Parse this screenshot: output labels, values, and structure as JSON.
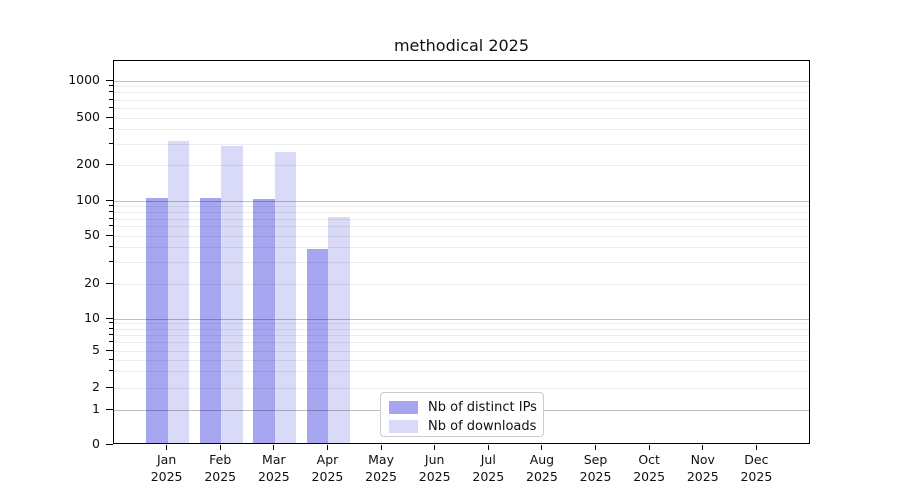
{
  "chart_data": {
    "type": "bar",
    "title": "methodical 2025",
    "categories": [
      "Jan",
      "Feb",
      "Mar",
      "Apr",
      "May",
      "Jun",
      "Jul",
      "Aug",
      "Sep",
      "Oct",
      "Nov",
      "Dec"
    ],
    "category_year": "2025",
    "series": [
      {
        "name": "Nb of distinct IPs",
        "color": "#a6a6f0",
        "values": [
          106,
          106,
          104,
          39,
          0,
          0,
          0,
          0,
          0,
          0,
          0,
          0
        ]
      },
      {
        "name": "Nb of downloads",
        "color": "#d9d9f8",
        "values": [
          320,
          290,
          258,
          73,
          0,
          0,
          0,
          0,
          0,
          0,
          0,
          0
        ]
      }
    ],
    "y_ticks": [
      0,
      1,
      2,
      5,
      10,
      20,
      50,
      100,
      200,
      500,
      1000
    ],
    "ylabel": "",
    "xlabel": "",
    "ylim": [
      0,
      1480
    ],
    "grid": "both, horizontal only, drawn over bars",
    "legend_position": "inside, lower center-left of plot",
    "scale": "log-like above 1 with 0 baseline"
  }
}
